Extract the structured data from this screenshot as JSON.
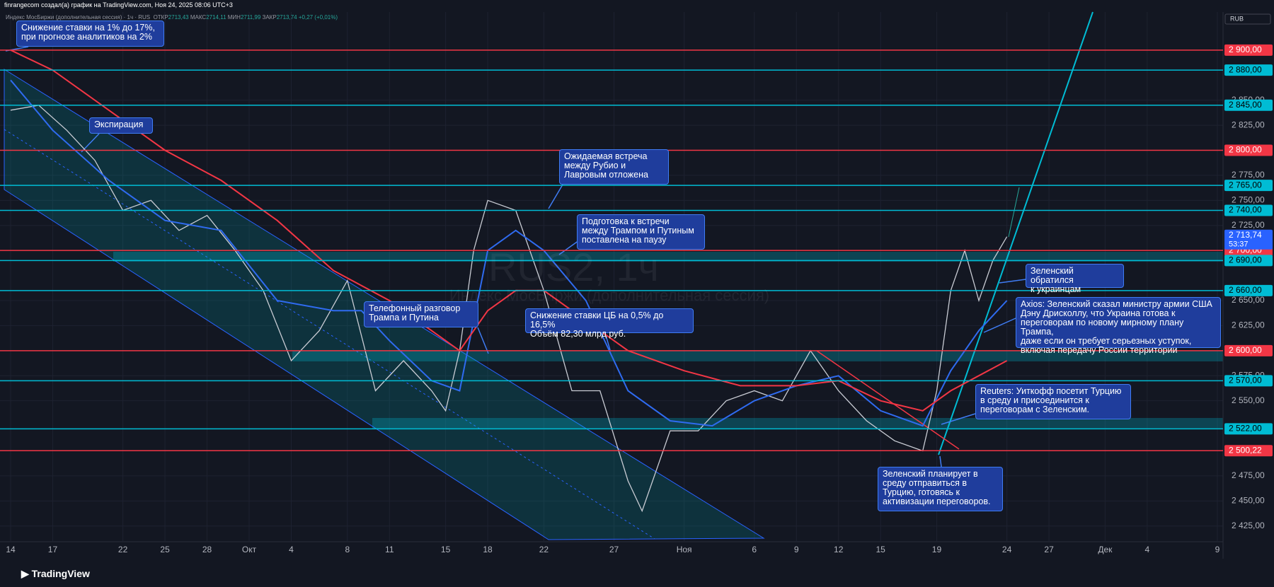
{
  "header": "finrangecom создал(а) график на TradingView.com, Ноя 24, 2025 08:06 UTC+3",
  "legend": {
    "symbol": "Индекс МосБиржи (дополнительная сессия) · 1ч · RUS",
    "open_label": "ОТКР",
    "open": "2713,43",
    "high_label": "МАКС",
    "high": "2714,11",
    "low_label": "МИН",
    "low": "2711,99",
    "close_label": "ЗАКР",
    "close": "2713,74",
    "change": "+0,27 (+0,01%)"
  },
  "watermark": {
    "symbol": "RUS2, 1ч",
    "name": "Индекс МосБиржи (дополнительная сессия)"
  },
  "currency": "RUB",
  "footer": "TradingView",
  "annotations": [
    "Снижение ставки на 1% до 17%,\nпри прогнозе аналитиков на 2%",
    "Экспирация",
    "Ожидаемая встреча\nмежду Рубио и\nЛавровым отложена",
    "Подготовка к встречи\nмежду Трампом и Путиным\nпоставлена на паузу",
    "Телефонный разговор\nТрампа и Путина",
    "Снижение ставки ЦБ на 0,5% до 16,5%\nОбъём 82,30 млрд руб.",
    "Зеленский обратился\nк украинцам",
    "Axios: Зеленский сказал министру армии США\nДэну Дрисколлу, что Украина готова к\nпереговорам по новому мирному плану Трампа,\nдаже если он требует серьезных уступок,\nвключая передачу России территории",
    "Reuters: Уиткофф посетит Турцию\nв среду и присоединится к\nпереговорам с Зеленским.",
    "Зеленский планирует в\nсреду отправиться в\nТурцию, готовясь к\nактивизации переговоров."
  ],
  "chart_data": {
    "type": "line",
    "xlim": [
      "2025-09-14",
      "2025-12-09"
    ],
    "ylim": [
      2410,
      2938
    ],
    "xticks": [
      {
        "value": "2025-09-14",
        "label": "14"
      },
      {
        "value": "2025-09-17",
        "label": "17"
      },
      {
        "value": "2025-09-22",
        "label": "22"
      },
      {
        "value": "2025-09-25",
        "label": "25"
      },
      {
        "value": "2025-09-28",
        "label": "28"
      },
      {
        "value": "2025-10-01",
        "label": "Окт"
      },
      {
        "value": "2025-10-04",
        "label": "4"
      },
      {
        "value": "2025-10-08",
        "label": "8"
      },
      {
        "value": "2025-10-11",
        "label": "11"
      },
      {
        "value": "2025-10-15",
        "label": "15"
      },
      {
        "value": "2025-10-18",
        "label": "18"
      },
      {
        "value": "2025-10-22",
        "label": "22"
      },
      {
        "value": "2025-10-27",
        "label": "27"
      },
      {
        "value": "2025-11-01",
        "label": "Ноя"
      },
      {
        "value": "2025-11-06",
        "label": "6"
      },
      {
        "value": "2025-11-09",
        "label": "9"
      },
      {
        "value": "2025-11-12",
        "label": "12"
      },
      {
        "value": "2025-11-15",
        "label": "15"
      },
      {
        "value": "2025-11-19",
        "label": "19"
      },
      {
        "value": "2025-11-24",
        "label": "24"
      },
      {
        "value": "2025-11-27",
        "label": "27"
      },
      {
        "value": "2025-12-01",
        "label": "Дек"
      },
      {
        "value": "2025-12-04",
        "label": "4"
      },
      {
        "value": "2025-12-09",
        "label": "9"
      }
    ],
    "yticks": [
      {
        "value": 2425,
        "label": "2 425,00"
      },
      {
        "value": 2450,
        "label": "2 450,00"
      },
      {
        "value": 2475,
        "label": "2 475,00"
      },
      {
        "value": 2550,
        "label": "2 550,00"
      },
      {
        "value": 2575,
        "label": "2 575,00"
      },
      {
        "value": 2625,
        "label": "2 625,00"
      },
      {
        "value": 2650,
        "label": "2 650,00"
      },
      {
        "value": 2725,
        "label": "2 725,00"
      },
      {
        "value": 2750,
        "label": "2 750,00"
      },
      {
        "value": 2775,
        "label": "2 775,00"
      },
      {
        "value": 2825,
        "label": "2 825,00"
      },
      {
        "value": 2850,
        "label": "2 850,00"
      }
    ],
    "grid": true,
    "levels": [
      {
        "value": 2900,
        "label": "2 900,00",
        "color": "#f23645"
      },
      {
        "value": 2880,
        "label": "2 880,00",
        "color": "#00bcd4"
      },
      {
        "value": 2845,
        "label": "2 845,00",
        "color": "#00bcd4"
      },
      {
        "value": 2800,
        "label": "2 800,00",
        "color": "#f23645"
      },
      {
        "value": 2765,
        "label": "2 765,00",
        "color": "#00bcd4"
      },
      {
        "value": 2740,
        "label": "2 740,00",
        "color": "#00bcd4"
      },
      {
        "value": 2700,
        "label": "2 700,00",
        "color": "#f23645"
      },
      {
        "value": 2690,
        "label": "2 690,00",
        "color": "#00bcd4"
      },
      {
        "value": 2660,
        "label": "2 660,00",
        "color": "#00bcd4"
      },
      {
        "value": 2600,
        "label": "2 600,00",
        "color": "#f23645"
      },
      {
        "value": 2570,
        "label": "2 570,00",
        "color": "#00bcd4"
      },
      {
        "value": 2522,
        "label": "2 522,00",
        "color": "#00bcd4"
      },
      {
        "value": 2500.22,
        "label": "2 500,22",
        "color": "#f23645"
      }
    ],
    "current": {
      "value": 2713.74,
      "label": "2 713,74",
      "countdown": "53:37",
      "color": "#2962ff"
    },
    "series": [
      {
        "color": "#c9ccd4",
        "x": [
          "2025-09-14",
          "2025-09-16",
          "2025-09-18",
          "2025-09-20",
          "2025-09-22",
          "2025-09-24",
          "2025-09-26",
          "2025-09-28",
          "2025-09-30",
          "2025-10-02",
          "2025-10-04",
          "2025-10-06",
          "2025-10-08",
          "2025-10-10",
          "2025-10-12",
          "2025-10-14",
          "2025-10-15",
          "2025-10-16",
          "2025-10-17",
          "2025-10-18",
          "2025-10-20",
          "2025-10-22",
          "2025-10-24",
          "2025-10-26",
          "2025-10-28",
          "2025-10-29",
          "2025-10-31",
          "2025-11-02",
          "2025-11-04",
          "2025-11-06",
          "2025-11-08",
          "2025-11-10",
          "2025-11-12",
          "2025-11-14",
          "2025-11-16",
          "2025-11-18",
          "2025-11-19",
          "2025-11-20",
          "2025-11-21",
          "2025-11-22",
          "2025-11-23",
          "2025-11-24"
        ],
        "values": [
          2840,
          2845,
          2820,
          2790,
          2740,
          2750,
          2720,
          2735,
          2700,
          2660,
          2590,
          2620,
          2670,
          2560,
          2590,
          2560,
          2540,
          2600,
          2700,
          2750,
          2740,
          2660,
          2560,
          2560,
          2470,
          2440,
          2520,
          2520,
          2550,
          2560,
          2550,
          2600,
          2560,
          2530,
          2510,
          2500,
          2560,
          2660,
          2700,
          2650,
          2690,
          2713.74
        ]
      },
      {
        "color": "#2f6bf0",
        "x": [
          "2025-09-14",
          "2025-09-17",
          "2025-09-21",
          "2025-09-25",
          "2025-09-29",
          "2025-10-03",
          "2025-10-07",
          "2025-10-09",
          "2025-10-11",
          "2025-10-14",
          "2025-10-16",
          "2025-10-18",
          "2025-10-20",
          "2025-10-22",
          "2025-10-25",
          "2025-10-28",
          "2025-10-31",
          "2025-11-03",
          "2025-11-06",
          "2025-11-09",
          "2025-11-12",
          "2025-11-15",
          "2025-11-18",
          "2025-11-20",
          "2025-11-22",
          "2025-11-24"
        ],
        "values": [
          2870,
          2820,
          2770,
          2730,
          2720,
          2650,
          2640,
          2640,
          2610,
          2570,
          2560,
          2700,
          2720,
          2700,
          2650,
          2560,
          2530,
          2525,
          2550,
          2565,
          2575,
          2540,
          2525,
          2580,
          2620,
          2650
        ]
      },
      {
        "color": "#f23645",
        "x": [
          "2025-09-14",
          "2025-09-17",
          "2025-09-21",
          "2025-09-25",
          "2025-09-29",
          "2025-10-03",
          "2025-10-07",
          "2025-10-11",
          "2025-10-15",
          "2025-10-16",
          "2025-10-18",
          "2025-10-20",
          "2025-10-22",
          "2025-10-25",
          "2025-10-28",
          "2025-11-01",
          "2025-11-05",
          "2025-11-09",
          "2025-11-12",
          "2025-11-15",
          "2025-11-18",
          "2025-11-20",
          "2025-11-24"
        ],
        "values": [
          2900,
          2880,
          2840,
          2800,
          2770,
          2730,
          2680,
          2650,
          2610,
          2600,
          2640,
          2660,
          2660,
          2630,
          2600,
          2580,
          2565,
          2565,
          2570,
          2550,
          2540,
          2560,
          2590
        ]
      }
    ]
  }
}
